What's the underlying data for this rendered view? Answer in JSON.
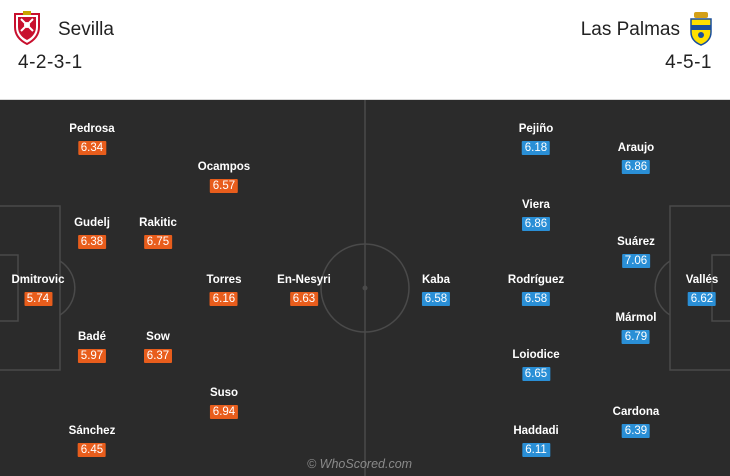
{
  "home": {
    "name": "Sevilla",
    "formation": "4-2-3-1",
    "color": "#e85d1c",
    "crest_icon": "sevilla-crest-icon",
    "players": [
      {
        "name": "Pedrosa",
        "rating": "6.34"
      },
      {
        "name": "Ocampos",
        "rating": "6.57"
      },
      {
        "name": "Gudelj",
        "rating": "6.38"
      },
      {
        "name": "Rakitic",
        "rating": "6.75"
      },
      {
        "name": "Dmitrovic",
        "rating": "5.74"
      },
      {
        "name": "Torres",
        "rating": "6.16"
      },
      {
        "name": "En-Nesyri",
        "rating": "6.63"
      },
      {
        "name": "Badé",
        "rating": "5.97"
      },
      {
        "name": "Sow",
        "rating": "6.37"
      },
      {
        "name": "Suso",
        "rating": "6.94"
      },
      {
        "name": "Sánchez",
        "rating": "6.45"
      }
    ]
  },
  "away": {
    "name": "Las Palmas",
    "formation": "4-5-1",
    "color": "#2a8fd6",
    "crest_icon": "las-palmas-crest-icon",
    "players": [
      {
        "name": "Pejiño",
        "rating": "6.18"
      },
      {
        "name": "Araujo",
        "rating": "6.86"
      },
      {
        "name": "Viera",
        "rating": "6.86"
      },
      {
        "name": "Suárez",
        "rating": "7.06"
      },
      {
        "name": "Kaba",
        "rating": "6.58"
      },
      {
        "name": "Rodríguez",
        "rating": "6.58"
      },
      {
        "name": "Vallés",
        "rating": "6.62"
      },
      {
        "name": "Mármol",
        "rating": "6.79"
      },
      {
        "name": "Loiodice",
        "rating": "6.65"
      },
      {
        "name": "Cardona",
        "rating": "6.39"
      },
      {
        "name": "Haddadi",
        "rating": "6.11"
      }
    ]
  },
  "watermark": "© WhoScored.com"
}
